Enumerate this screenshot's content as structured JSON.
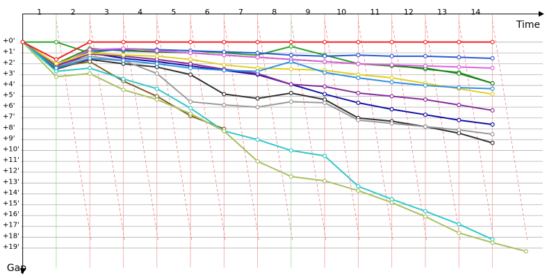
{
  "chart_data": {
    "type": "line",
    "x_label": "Time",
    "y_label": "Gap",
    "stages": [
      "1",
      "2",
      "3",
      "4",
      "5",
      "6",
      "7",
      "8",
      "9",
      "10",
      "11",
      "12",
      "13",
      "14"
    ],
    "x": [
      0,
      1,
      2,
      3,
      4,
      5,
      6,
      7,
      8,
      9,
      10,
      11,
      12,
      13,
      14,
      15
    ],
    "xlim": [
      -0.2,
      15.5
    ],
    "ylim": [
      -2.6,
      20.8
    ],
    "yticks": [
      {
        "value": 0,
        "label": "+0'"
      },
      {
        "value": 1,
        "label": "+1'"
      },
      {
        "value": 2,
        "label": "+2'"
      },
      {
        "value": 3,
        "label": "+3'"
      },
      {
        "value": 4,
        "label": "+4'"
      },
      {
        "value": 5,
        "label": "+5'"
      },
      {
        "value": 6,
        "label": "+6'"
      },
      {
        "value": 7,
        "label": "+7'"
      },
      {
        "value": 8,
        "label": "+8'"
      },
      {
        "value": 9,
        "label": "+9'"
      },
      {
        "value": 10,
        "label": "+10'"
      },
      {
        "value": 11,
        "label": "+11'"
      },
      {
        "value": 12,
        "label": "+12'"
      },
      {
        "value": 13,
        "label": "+13'"
      },
      {
        "value": 14,
        "label": "+14'"
      },
      {
        "value": 15,
        "label": "+15'"
      },
      {
        "value": 16,
        "label": "+16'"
      },
      {
        "value": 17,
        "label": "+17'"
      },
      {
        "value": 18,
        "label": "+18'"
      },
      {
        "value": 19,
        "label": "+19'"
      }
    ],
    "grid": true,
    "series": [
      {
        "color": "#2aa02a",
        "values": [
          0,
          0,
          1,
          0.6,
          0.7,
          0.8,
          1,
          1.2,
          0.4,
          1.2,
          2,
          2.1,
          2.5,
          2.8,
          3.8,
          null
        ]
      },
      {
        "color": "#1f7f1f",
        "values": [
          0,
          2,
          0.6,
          0.8,
          0.9,
          1,
          1.2,
          1.4,
          1.6,
          1.8,
          2,
          2.2,
          2.4,
          2.9,
          3.8,
          null
        ]
      },
      {
        "color": "#2a5ad0",
        "values": [
          0,
          2.2,
          0.8,
          0.7,
          0.7,
          0.8,
          0.9,
          1,
          1.2,
          1.3,
          1.2,
          1.3,
          1.3,
          1.4,
          1.5,
          null
        ]
      },
      {
        "color": "#1010a0",
        "values": [
          0,
          2.5,
          1,
          1.5,
          1.8,
          2.2,
          2.6,
          3,
          3.9,
          4.8,
          5.6,
          6.2,
          6.7,
          7.2,
          7.6,
          null
        ]
      },
      {
        "color": "#e060e0",
        "values": [
          0,
          2.3,
          0.7,
          0.6,
          0.8,
          1,
          1.2,
          1.4,
          1.6,
          1.8,
          2,
          2.1,
          2.2,
          2.3,
          2.4,
          null
        ]
      },
      {
        "color": "#8a2a9a",
        "values": [
          0,
          2.2,
          1.1,
          1.3,
          1.6,
          2,
          2.5,
          2.9,
          3.9,
          4.1,
          4.7,
          5,
          5.3,
          5.8,
          6.3,
          null
        ]
      },
      {
        "color": "#e0d020",
        "values": [
          0,
          2,
          1,
          1.2,
          1.3,
          1.6,
          2.1,
          2.4,
          2.5,
          2.6,
          3,
          3.3,
          3.8,
          4.3,
          4.8,
          null
        ]
      },
      {
        "color": "#303030",
        "values": [
          0,
          2.5,
          1.6,
          2,
          2.3,
          3,
          4.8,
          5.2,
          4.7,
          5.3,
          7,
          7.3,
          7.8,
          8.4,
          9.3,
          null
        ]
      },
      {
        "color": "#999999",
        "values": [
          0,
          2.3,
          1.3,
          1.7,
          2.9,
          5.5,
          5.8,
          6,
          5.5,
          5.6,
          7.2,
          7.5,
          7.8,
          8.1,
          8.5,
          null
        ]
      },
      {
        "color": "#806020",
        "values": [
          0,
          2.3,
          1.8,
          3.6,
          5,
          6.8,
          8,
          null,
          null,
          null,
          null,
          null,
          null,
          null,
          null,
          null
        ]
      },
      {
        "color": "#3090e0",
        "values": [
          0,
          2.4,
          1.5,
          1.7,
          2,
          2.4,
          2.6,
          2.7,
          1.8,
          2.8,
          3.3,
          3.7,
          4,
          4.2,
          4.3,
          null
        ]
      },
      {
        "color": "#30c8c8",
        "values": [
          0,
          2.7,
          2.4,
          3.4,
          4.3,
          6.1,
          8.2,
          9,
          10,
          10.5,
          13.3,
          14.5,
          15.6,
          16.8,
          18.2,
          null
        ]
      },
      {
        "color": "#a8c060",
        "values": [
          0,
          3.2,
          2.9,
          4.4,
          5.3,
          6.6,
          8.2,
          11,
          12.4,
          12.8,
          13.7,
          14.8,
          16.1,
          17.6,
          18.5,
          19.3
        ]
      },
      {
        "color": "#ee2020",
        "values": [
          0,
          1.6,
          0,
          0,
          0,
          0,
          0,
          0,
          0,
          0,
          0,
          0,
          0,
          0,
          0,
          null
        ]
      }
    ]
  }
}
